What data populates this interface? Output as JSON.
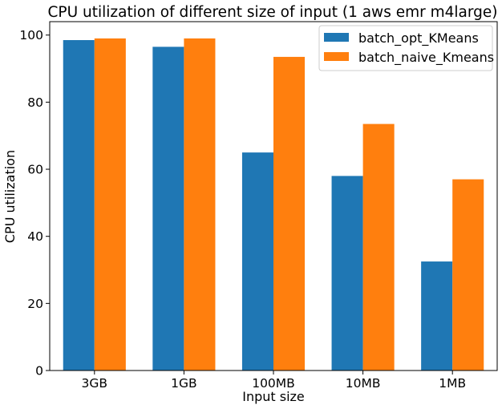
{
  "chart_data": {
    "type": "bar",
    "title": "CPU utilization of different size of input (1 aws emr m4large)",
    "xlabel": "Input size",
    "ylabel": "CPU utilization",
    "categories": [
      "3GB",
      "1GB",
      "100MB",
      "10MB",
      "1MB"
    ],
    "series": [
      {
        "name": "batch_opt_KMeans",
        "color": "#1f77b4",
        "values": [
          98.5,
          96.5,
          65.0,
          58.0,
          32.5
        ]
      },
      {
        "name": "batch_naive_Kmeans",
        "color": "#ff7f0e",
        "values": [
          99.0,
          99.0,
          93.5,
          73.5,
          57.0
        ]
      }
    ],
    "ylim": [
      0,
      104
    ],
    "yticks": [
      0,
      20,
      40,
      60,
      80,
      100
    ],
    "grid": false,
    "legend_position": "top-right"
  }
}
